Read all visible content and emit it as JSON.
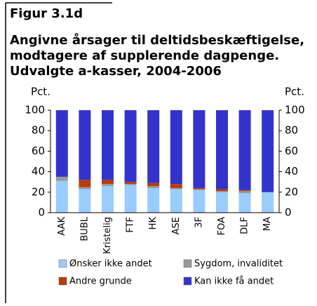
{
  "header": "Figur 3.1d",
  "chart_data": {
    "type": "stacked_bar",
    "title": [
      "Angivne årsager til deltidsbeskæftigelse,",
      "modtagere af supplerende dagpenge.",
      "Udvalgte a-kasser, 2004-2006"
    ],
    "ylabel": "Pct.",
    "y2label": "Pct.",
    "categories": [
      "AAK",
      "BUBL",
      "Kristelig",
      "FTF",
      "HK",
      "ASE",
      "3F",
      "FOA",
      "DLF",
      "MA"
    ],
    "series": [
      {
        "name": "Ønsker ikke andet",
        "color": "#99ccff",
        "values": [
          31,
          23,
          26,
          27,
          24,
          23,
          22,
          20,
          19,
          20
        ]
      },
      {
        "name": "Sygdom, invaliditet",
        "color": "#999999",
        "values": [
          4,
          2,
          2,
          1,
          2,
          1,
          1,
          1,
          2,
          0
        ]
      },
      {
        "name": "Andre grunde",
        "color": "#b83c0a",
        "values": [
          0,
          7,
          4,
          2,
          3,
          4,
          1,
          2,
          1,
          0
        ]
      },
      {
        "name": "Kan ikke få andet",
        "color": "#3333cc",
        "values": [
          65,
          68,
          68,
          70,
          71,
          72,
          76,
          77,
          78,
          80
        ]
      }
    ],
    "ylim": [
      0,
      100
    ],
    "yticks": [
      0,
      20,
      40,
      60,
      80,
      100
    ],
    "y2lim": [
      0,
      100
    ],
    "y2ticks": [
      0,
      20,
      40,
      60,
      80,
      100
    ]
  }
}
